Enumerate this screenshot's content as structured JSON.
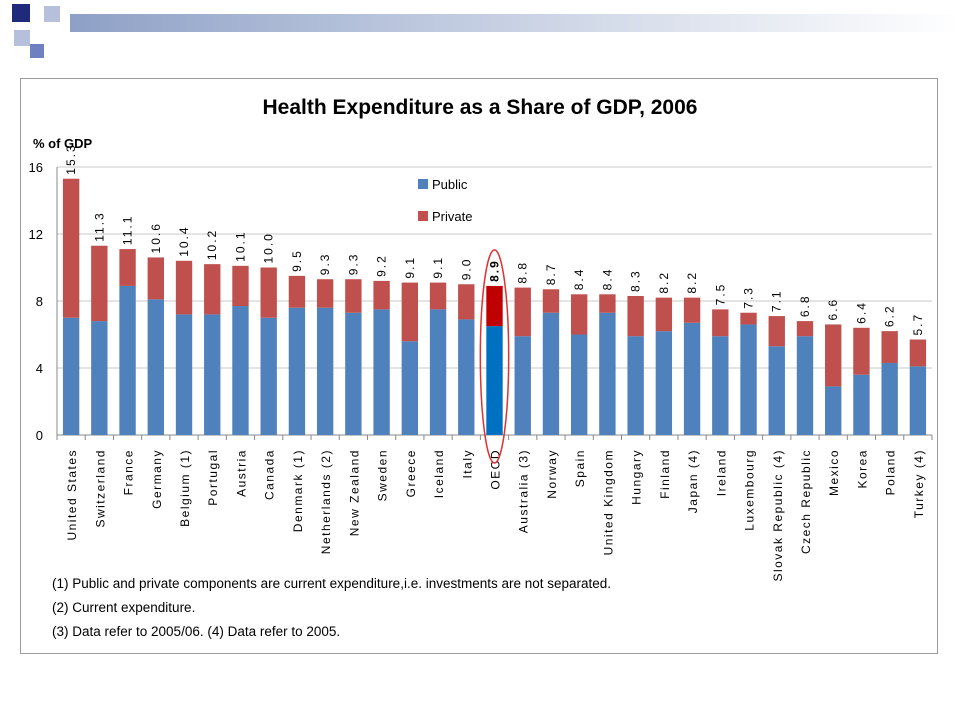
{
  "chart_data": {
    "type": "bar",
    "stacked": true,
    "title": "Health Expenditure as a Share of GDP, 2006",
    "ylabel": "% of GDP",
    "ylim": [
      0,
      16
    ],
    "yticks": [
      0,
      4,
      8,
      12,
      16
    ],
    "grid": true,
    "legend_position": "top-center",
    "colors": {
      "public": "#4f81bd",
      "private": "#c0504d",
      "oecd_public": "#0070c0",
      "oecd_private": "#c00000",
      "highlight": "#e03030"
    },
    "categories": [
      "United States",
      "Switzerland",
      "France",
      "Germany",
      "Belgium (1)",
      "Portugal",
      "Austria",
      "Canada",
      "Denmark (1)",
      "Netherlands (2)",
      "New Zealand",
      "Sweden",
      "Greece",
      "Iceland",
      "Italy",
      "OECD",
      "Australia (3)",
      "Norway",
      "Spain",
      "United Kingdom",
      "Hungary",
      "Finland",
      "Japan (4)",
      "Ireland",
      "Luxembourg",
      "Slovak Republic (4)",
      "Czech Republic",
      "Mexico",
      "Korea",
      "Poland",
      "Turkey (4)"
    ],
    "series": [
      {
        "name": "Public",
        "values": [
          7.0,
          6.8,
          8.9,
          8.1,
          7.2,
          7.2,
          7.7,
          7.0,
          7.6,
          7.6,
          7.3,
          7.5,
          5.6,
          7.5,
          6.9,
          6.5,
          5.9,
          7.3,
          6.0,
          7.3,
          5.9,
          6.2,
          6.7,
          5.9,
          6.6,
          5.3,
          5.9,
          2.9,
          3.6,
          4.3,
          4.1
        ]
      },
      {
        "name": "Private",
        "values": [
          8.3,
          4.5,
          2.2,
          2.5,
          3.2,
          3.0,
          2.4,
          3.0,
          1.9,
          1.7,
          2.0,
          1.7,
          3.5,
          1.6,
          2.1,
          2.4,
          2.9,
          1.4,
          2.4,
          1.1,
          2.4,
          2.0,
          1.5,
          1.6,
          0.7,
          1.8,
          0.9,
          3.7,
          2.8,
          1.9,
          1.6
        ]
      }
    ],
    "totals": [
      "15.3",
      "11.3",
      "11.1",
      "10.6",
      "10.4",
      "10.2",
      "10.1",
      "10.0",
      "9.5",
      "9.3",
      "9.3",
      "9.2",
      "9.1",
      "9.1",
      "9.0",
      "8.9",
      "8.8",
      "8.7",
      "8.4",
      "8.4",
      "8.3",
      "8.2",
      "8.2",
      "7.5",
      "7.3",
      "7.1",
      "6.8",
      "6.6",
      "6.4",
      "6.2",
      "5.7"
    ],
    "highlight_category": "OECD"
  },
  "notes": [
    "(1) Public and private components are current expenditure,i.e. investments are not separated.",
    "(2) Current expenditure.",
    "(3) Data refer to 2005/06. (4) Data refer to 2005."
  ]
}
